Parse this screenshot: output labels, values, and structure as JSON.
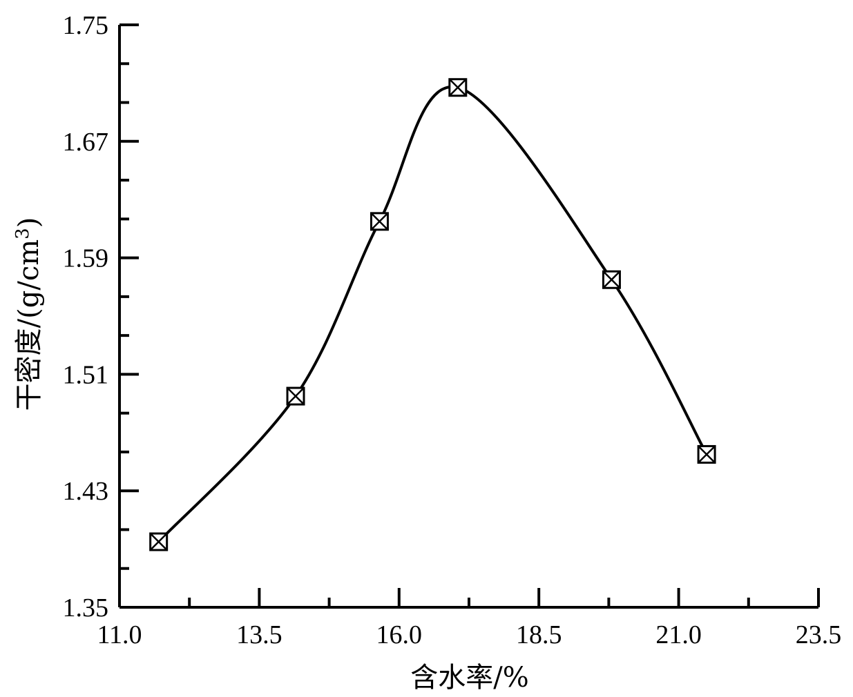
{
  "chart_data": {
    "type": "line",
    "title": "",
    "xlabel": "含水率/%",
    "ylabel_main": "干密度/(g/cm",
    "ylabel_sup": "3",
    "ylabel_tail": ")",
    "xlim": [
      11.0,
      23.5
    ],
    "ylim": [
      1.35,
      1.75
    ],
    "x_ticks": [
      "11.0",
      "13.5",
      "16.0",
      "18.5",
      "21.0",
      "23.5"
    ],
    "y_ticks": [
      "1.35",
      "1.43",
      "1.51",
      "1.59",
      "1.67",
      "1.75"
    ],
    "x_tick_values": [
      11.0,
      13.5,
      16.0,
      18.5,
      21.0,
      23.5
    ],
    "y_tick_values": [
      1.35,
      1.43,
      1.51,
      1.59,
      1.67,
      1.75
    ],
    "x_minor_step": 1.25,
    "y_minor_step": 0.0267,
    "grid": false,
    "legend": "none",
    "marker": "box-with-x",
    "line_color": "#000000",
    "series": [
      {
        "x": [
          11.7,
          14.15,
          15.65,
          17.05,
          19.8,
          21.5
        ],
        "y": [
          1.395,
          1.495,
          1.615,
          1.707,
          1.575,
          1.455
        ]
      }
    ]
  }
}
